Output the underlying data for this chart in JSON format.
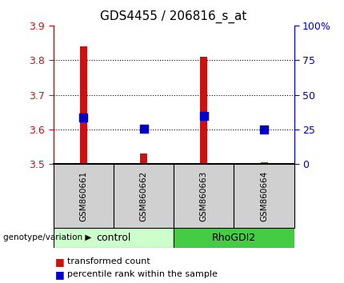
{
  "title": "GDS4455 / 206816_s_at",
  "samples": [
    "GSM860661",
    "GSM860662",
    "GSM860663",
    "GSM860664"
  ],
  "transformed_counts": [
    3.84,
    3.53,
    3.81,
    3.505
  ],
  "percentile_ranks": [
    3.635,
    3.602,
    3.638,
    3.601
  ],
  "y_min": 3.5,
  "y_max": 3.9,
  "y_ticks_left": [
    3.5,
    3.6,
    3.7,
    3.8,
    3.9
  ],
  "right_tick_vals": [
    3.5,
    3.6,
    3.7,
    3.8,
    3.9
  ],
  "right_tick_labels": [
    "0",
    "25",
    "50",
    "75",
    "100%"
  ],
  "bar_color": "#CC1111",
  "dot_color": "#0000CC",
  "bar_width": 0.12,
  "dot_size": 55,
  "background_color": "#FFFFFF",
  "left_axis_color": "#CC1111",
  "right_axis_color": "#0000CC",
  "legend_red_label": "transformed count",
  "legend_blue_label": "percentile rank within the sample",
  "group_label": "genotype/variation",
  "control_label": "control",
  "rhodgi2_label": "RhoGDI2",
  "control_bg": "#CCFFCC",
  "rhodgi2_bg": "#44CC44",
  "sample_box_bg": "#D0D0D0",
  "grid_yticks": [
    3.6,
    3.7,
    3.8
  ]
}
